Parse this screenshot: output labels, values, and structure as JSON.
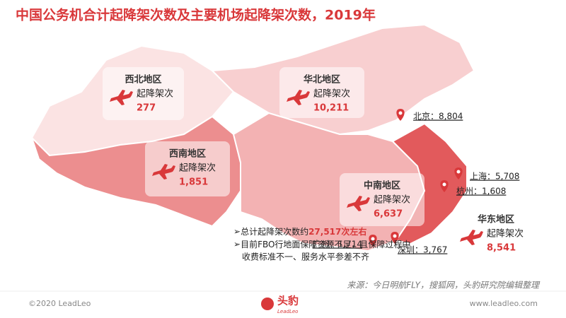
{
  "title": "中国公务机合计起降架次数及主要机场起降架次数，2019年",
  "regions": [
    {
      "name": "西北地区",
      "label": "起降架次",
      "value": "277"
    },
    {
      "name": "华北地区",
      "label": "起降架次",
      "value": "10,211"
    },
    {
      "name": "西南地区",
      "label": "起降架次",
      "value": "1,851"
    },
    {
      "name": "中南地区",
      "label": "起降架次",
      "value": "6,637"
    },
    {
      "name": "华东地区",
      "label": "起降架次",
      "value": "8,541"
    }
  ],
  "airports": [
    "北京：8,804",
    "上海：5,708",
    "杭州：1,608",
    "广州：1,714",
    "深圳：3,767"
  ],
  "notes": {
    "total_prefix": "总计起降架次数约",
    "total_value": "27,517次左右",
    "line2": "目前FBO行地面保障资源不足，且保障过程中",
    "line3": "收费标准不一、服务水平参差不齐"
  },
  "source": "来源：今日明航FLY，搜狐网，头豹研究院编辑整理",
  "footer": {
    "copyright": "©2020 LeadLeo",
    "logo": "头豹",
    "logo_sub": "LeadLeo",
    "url": "www.leadleo.com"
  }
}
